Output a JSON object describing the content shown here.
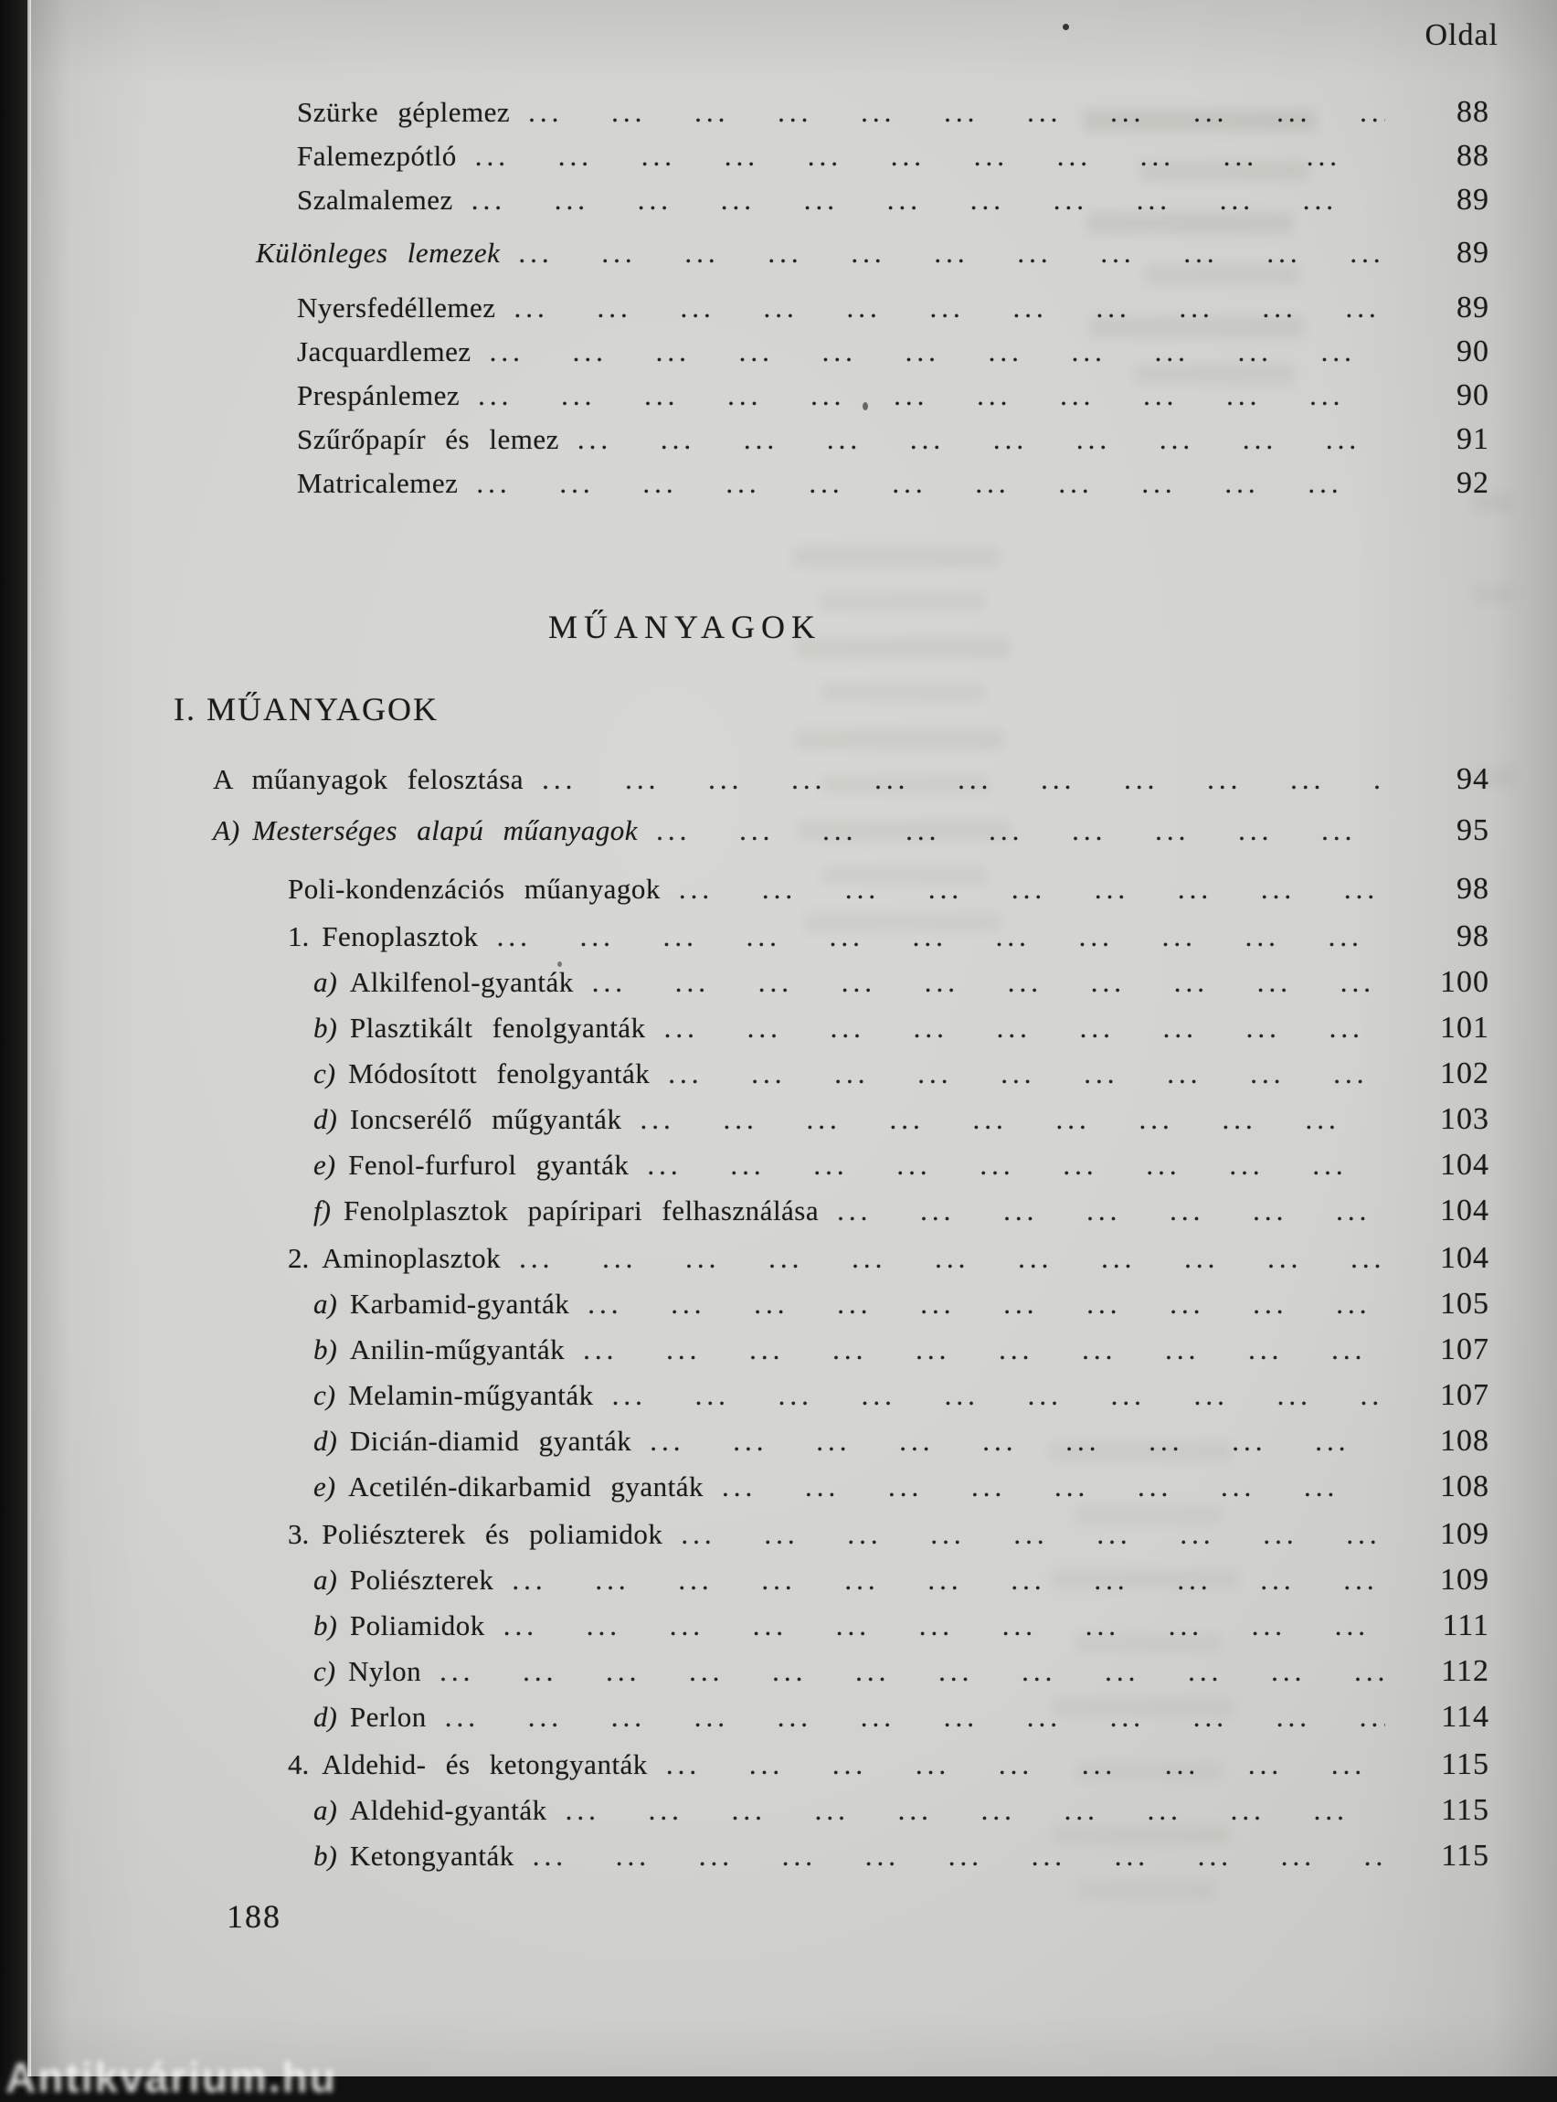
{
  "header": {
    "column_label": "Oldal"
  },
  "heading": "MŰANYAGOK",
  "section_title": "I. MŰANYAGOK",
  "footer": {
    "page_number": "188",
    "watermark": "Antikvárium.hu"
  },
  "ui": {
    "dots": "... ... ... ... ... ... ... ... ... ... ... ... ... ... ..."
  },
  "toc_top": [
    {
      "prefix": "",
      "label": "Szürke géplemez",
      "page": "88",
      "variant": ""
    },
    {
      "prefix": "",
      "label": "Falemezpótló",
      "page": "88",
      "variant": ""
    },
    {
      "prefix": "",
      "label": "Szalmalemez",
      "page": "89",
      "variant": ""
    },
    {
      "prefix": "",
      "label": "Különleges lemezek",
      "page": "89",
      "variant": "row-sub italic gap-sm"
    },
    {
      "prefix": "",
      "label": "Nyersfedéllemez",
      "page": "89",
      "variant": "gap-before"
    },
    {
      "prefix": "",
      "label": "Jacquardlemez",
      "page": "90",
      "variant": ""
    },
    {
      "prefix": "",
      "label": "Prespánlemez",
      "page": "90",
      "variant": ""
    },
    {
      "prefix": "",
      "label": "Szűrőpapír és lemez",
      "page": "91",
      "variant": ""
    },
    {
      "prefix": "",
      "label": "Matricalemez",
      "page": "92",
      "variant": ""
    }
  ],
  "toc_main": [
    {
      "prefix": "",
      "label": "A műanyagok felosztása",
      "page": "94",
      "variant": "level1"
    },
    {
      "prefix": "A)",
      "label": "Mesterséges alapú műanyagok",
      "page": "95",
      "variant": "level1 italic gap-sm"
    },
    {
      "prefix": "",
      "label": "Poli-kondenzációs műanyagok",
      "page": "98",
      "variant": "level2 gap-lg"
    },
    {
      "prefix": "1.",
      "label": "Fenoplasztok",
      "page": "98",
      "variant": "numbered gap-before"
    },
    {
      "prefix": "a)",
      "label": "Alkilfenol-gyanták",
      "page": "100",
      "variant": "letter"
    },
    {
      "prefix": "b)",
      "label": "Plasztikált fenolgyanták",
      "page": "101",
      "variant": "letter"
    },
    {
      "prefix": "c)",
      "label": "Módosított fenolgyanták",
      "page": "102",
      "variant": "letter"
    },
    {
      "prefix": "d)",
      "label": "Ioncserélő műgyanták",
      "page": "103",
      "variant": "letter"
    },
    {
      "prefix": "e)",
      "label": "Fenol-furfurol gyanták",
      "page": "104",
      "variant": "letter"
    },
    {
      "prefix": "f)",
      "label": "Fenolplasztok papíripari felhasználása",
      "page": "104",
      "variant": "letter"
    },
    {
      "prefix": "2.",
      "label": "Aminoplasztok",
      "page": "104",
      "variant": "numbered gap-before"
    },
    {
      "prefix": "a)",
      "label": "Karbamid-gyanták",
      "page": "105",
      "variant": "letter"
    },
    {
      "prefix": "b)",
      "label": "Anilin-műgyanták",
      "page": "107",
      "variant": "letter"
    },
    {
      "prefix": "c)",
      "label": "Melamin-műgyanták",
      "page": "107",
      "variant": "letter"
    },
    {
      "prefix": "d)",
      "label": "Dicián-diamid gyanták",
      "page": "108",
      "variant": "letter"
    },
    {
      "prefix": "e)",
      "label": "Acetilén-dikarbamid gyanták",
      "page": "108",
      "variant": "letter"
    },
    {
      "prefix": "3.",
      "label": "Poliészterek és poliamidok",
      "page": "109",
      "variant": "numbered gap-before"
    },
    {
      "prefix": "a)",
      "label": "Poliészterek",
      "page": "109",
      "variant": "letter"
    },
    {
      "prefix": "b)",
      "label": "Poliamidok",
      "page": "111",
      "variant": "letter"
    },
    {
      "prefix": "c)",
      "label": "Nylon",
      "page": "112",
      "variant": "letter"
    },
    {
      "prefix": "d)",
      "label": "Perlon",
      "page": "114",
      "variant": "letter"
    },
    {
      "prefix": "4.",
      "label": "Aldehid- és ketongyanták",
      "page": "115",
      "variant": "numbered gap-before"
    },
    {
      "prefix": "a)",
      "label": "Aldehid-gyanták",
      "page": "115",
      "variant": "letter"
    },
    {
      "prefix": "b)",
      "label": "Ketongyanták",
      "page": "115",
      "variant": "letter"
    }
  ]
}
